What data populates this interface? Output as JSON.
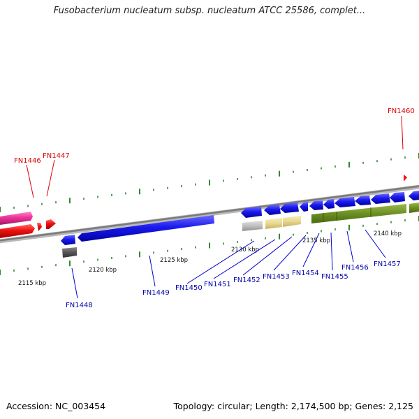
{
  "title": "Fusobacterium nucleatum subsp. nucleatum ATCC 25586, complet...",
  "footer": {
    "accession": "Accession: NC_003454",
    "topology": "Topology: circular; Length: 2,174,500 bp; Genes: 2,125"
  },
  "scale_labels": [
    {
      "id": "tick-2115",
      "text": "2115 kbp"
    },
    {
      "id": "tick-2120",
      "text": "2120 kbp"
    },
    {
      "id": "tick-2125",
      "text": "2125 kbp"
    },
    {
      "id": "tick-2130",
      "text": "2130 kbp"
    },
    {
      "id": "tick-2135",
      "text": "2135 kbp"
    },
    {
      "id": "tick-2140",
      "text": "2140 kbp"
    }
  ],
  "gene_labels": [
    {
      "id": "fn1446",
      "text": "FN1446",
      "color": "#dd0000"
    },
    {
      "id": "fn1447",
      "text": "FN1447",
      "color": "#dd0000"
    },
    {
      "id": "fn1460",
      "text": "FN1460",
      "color": "#dd0000"
    },
    {
      "id": "fn1448",
      "text": "FN1448",
      "color": "#0000aa"
    },
    {
      "id": "fn1449",
      "text": "FN1449",
      "color": "#0000aa"
    },
    {
      "id": "fn1450",
      "text": "FN1450",
      "color": "#0000aa"
    },
    {
      "id": "fn1451",
      "text": "FN1451",
      "color": "#0000aa"
    },
    {
      "id": "fn1452",
      "text": "FN1452",
      "color": "#0000aa"
    },
    {
      "id": "fn1453",
      "text": "FN1453",
      "color": "#0000aa"
    },
    {
      "id": "fn1454",
      "text": "FN1454",
      "color": "#0000aa"
    },
    {
      "id": "fn1455",
      "text": "FN1455",
      "color": "#0000aa"
    },
    {
      "id": "fn1456",
      "text": "FN1456",
      "color": "#0000aa"
    },
    {
      "id": "fn1457",
      "text": "FN1457",
      "color": "#0000aa"
    }
  ],
  "colors": {
    "backbone": "#8a8a8a",
    "cds_blue": "#1a1aee",
    "cds_red": "#ee1111",
    "cds_pink": "#ee3399",
    "green_track": "#6b8e23",
    "yellow_track": "#e8d890",
    "gray_track": "#c0c0c0",
    "dark_gray_track": "#555555",
    "tick_green": "#2e8b2e"
  }
}
